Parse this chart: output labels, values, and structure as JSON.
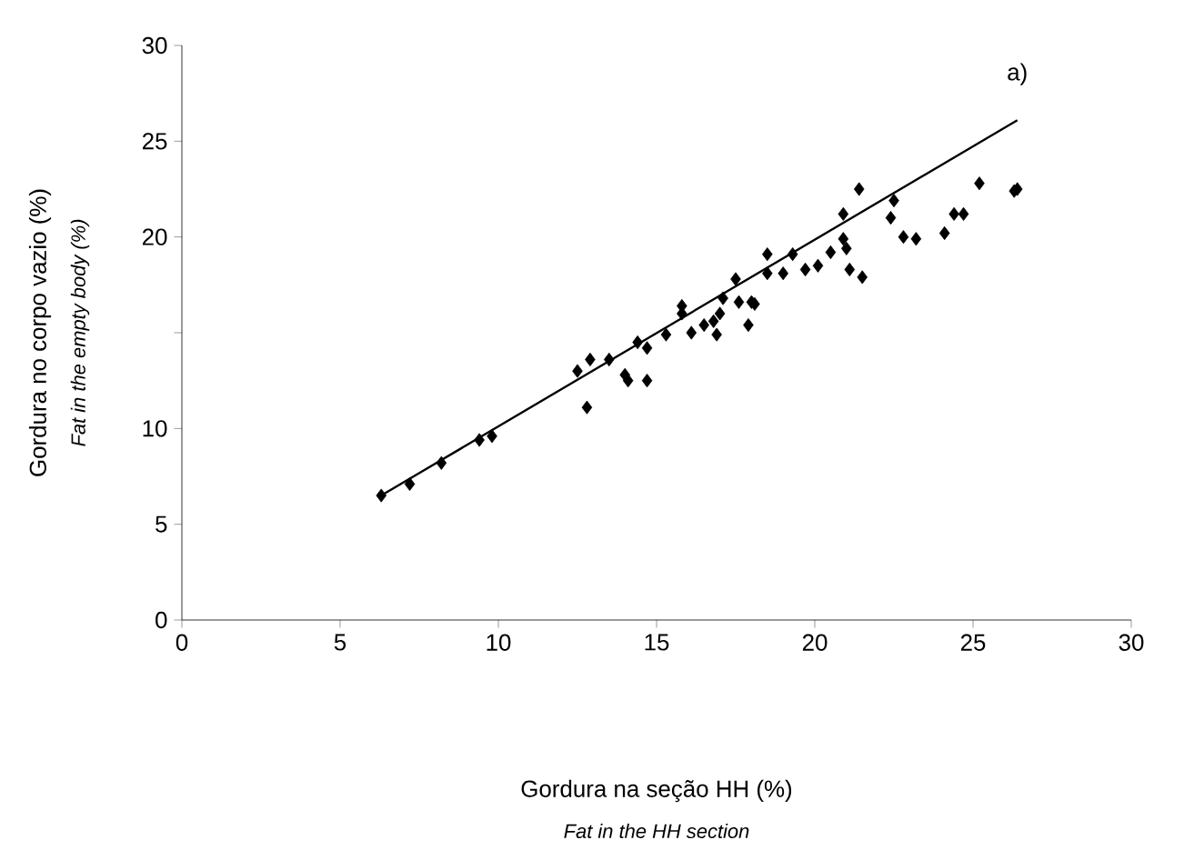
{
  "chart_data": {
    "type": "scatter",
    "ylabel": "Gordura no corpo vazio (%)",
    "annotations": [
      "a)",
      "Gordura na seção HH (%)",
      "*Fat in the HH section*",
      "*Fat in the empty body (%)*"
    ],
    "xlim": [
      0,
      30
    ],
    "ylim": [
      0,
      30
    ],
    "xticks": [
      0,
      5,
      10,
      15,
      20,
      25,
      30
    ],
    "yticks": [
      0,
      5,
      10,
      {
        "value": 15,
        "label": null
      },
      20,
      25,
      30
    ],
    "grid": false,
    "series": [
      {
        "color": "#000000",
        "marker": "diamond",
        "x": [
          6.3,
          7.2,
          8.2,
          9.4,
          9.8,
          12.5,
          12.9,
          12.8,
          13.5,
          14.0,
          14.1,
          14.4,
          14.7,
          14.7,
          15.3,
          15.8,
          15.8,
          16.1,
          16.5,
          16.8,
          16.9,
          17.0,
          17.1,
          17.5,
          17.6,
          17.9,
          18.0,
          18.1,
          18.5,
          18.5,
          19.0,
          19.3,
          19.7,
          20.1,
          20.5,
          20.9,
          20.9,
          21.0,
          21.1,
          21.4,
          21.5,
          22.5,
          22.4,
          22.8,
          23.2,
          24.1,
          24.4,
          24.7,
          25.2,
          26.3,
          26.4
        ],
        "values": [
          6.5,
          7.1,
          8.2,
          9.4,
          9.6,
          13.0,
          13.6,
          11.1,
          13.6,
          12.8,
          12.5,
          14.5,
          14.2,
          12.5,
          14.9,
          16.4,
          16.0,
          15.0,
          15.4,
          15.6,
          14.9,
          16.0,
          16.8,
          17.8,
          16.6,
          15.4,
          16.6,
          16.5,
          19.1,
          18.1,
          18.1,
          19.1,
          18.3,
          18.5,
          19.2,
          21.2,
          19.9,
          19.4,
          18.3,
          22.5,
          17.9,
          21.9,
          21.0,
          20.0,
          19.9,
          20.2,
          21.2,
          21.2,
          22.8,
          22.4,
          22.5
        ]
      },
      {
        "type": "line",
        "color": "#000000",
        "marker": "none",
        "line_style": "solid",
        "x": [
          6.3,
          26.4
        ],
        "values": [
          6.5,
          26.1
        ]
      }
    ]
  }
}
